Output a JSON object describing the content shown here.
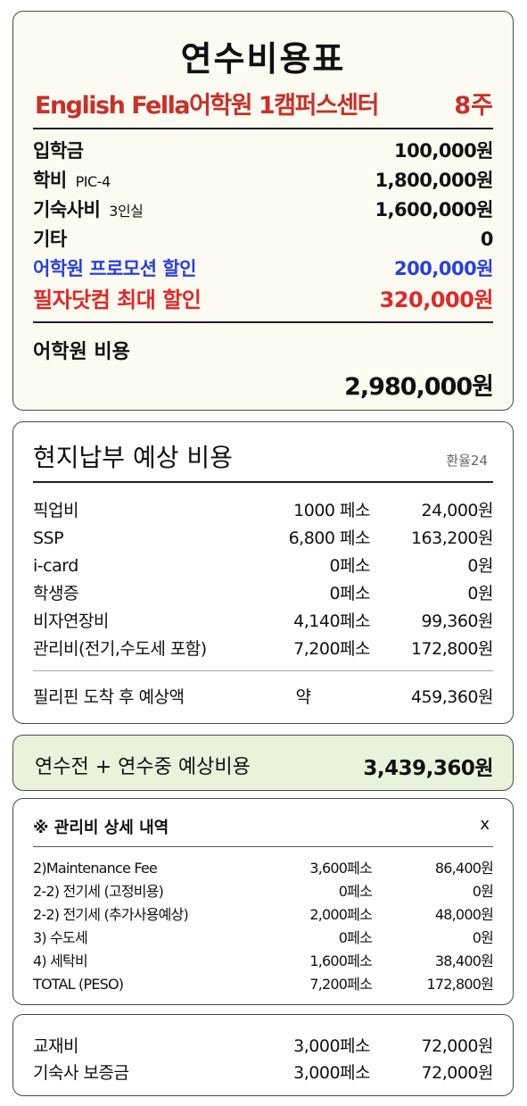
{
  "summary": {
    "title": "연수비용표",
    "school": "English Fella어학원 1캠퍼스센터",
    "weeks": "8주",
    "rows": [
      {
        "label": "입학금",
        "sub": "",
        "value": "100,000원",
        "color": "#111111"
      },
      {
        "label": "학비",
        "sub": "PIC-4",
        "value": "1,800,000원",
        "color": "#111111"
      },
      {
        "label": "기숙사비",
        "sub": "3인실",
        "value": "1,600,000원",
        "color": "#111111"
      },
      {
        "label": "기타",
        "sub": "",
        "value": "0",
        "color": "#111111"
      },
      {
        "label": "어학원 프로모션 할인",
        "sub": "",
        "value": "200,000원",
        "color": "#2a3fe0"
      },
      {
        "label": "필자닷컴 최대 할인",
        "sub": "",
        "value": "320,000원",
        "color": "#e0282a"
      }
    ],
    "total_label": "어학원 비용",
    "total_value": "2,980,000원"
  },
  "local": {
    "title": "현지납부 예상 비용",
    "rate": "환율24",
    "rows": [
      {
        "label": "픽업비",
        "peso": "1000 페소",
        "won": "24,000원"
      },
      {
        "label": "SSP",
        "peso": "6,800 페소",
        "won": "163,200원"
      },
      {
        "label": "i-card",
        "peso": "0페소",
        "won": "0원"
      },
      {
        "label": "학생증",
        "peso": "0페소",
        "won": "0원"
      },
      {
        "label": "비자연장비",
        "peso": "4,140페소",
        "won": "99,360원"
      },
      {
        "label": "관리비(전기,수도세 포함)",
        "peso": "7,200페소",
        "won": "172,800원"
      }
    ],
    "arrival_label": "필리핀 도착 후 예상액",
    "arrival_approx": "약",
    "arrival_value": "459,360원"
  },
  "grand": {
    "label": "연수전 + 연수중 예상비용",
    "value": "3,439,360원"
  },
  "management": {
    "title": "※ 관리비 상세 내역",
    "close": "x",
    "rows": [
      {
        "label": "2)Maintenance Fee",
        "peso": "3,600페소",
        "won": "86,400원"
      },
      {
        "label": "2-2) 전기세 (고정비용)",
        "peso": "0페소",
        "won": "0원"
      },
      {
        "label": "2-2) 전기세 (추가사용예상)",
        "peso": "2,000페소",
        "won": "48,000원"
      },
      {
        "label": "3) 수도세",
        "peso": "0페소",
        "won": "0원"
      },
      {
        "label": "4) 세탁비",
        "peso": "1,600페소",
        "won": "38,400원"
      },
      {
        "label": "TOTAL (PESO)",
        "peso": "7,200페소",
        "won": "172,800원"
      }
    ]
  },
  "extras": {
    "rows": [
      {
        "label": "교재비",
        "peso": "3,000페소",
        "won": "72,000원"
      },
      {
        "label": "기숙사 보증금",
        "peso": "3,000페소",
        "won": "72,000원"
      }
    ]
  }
}
